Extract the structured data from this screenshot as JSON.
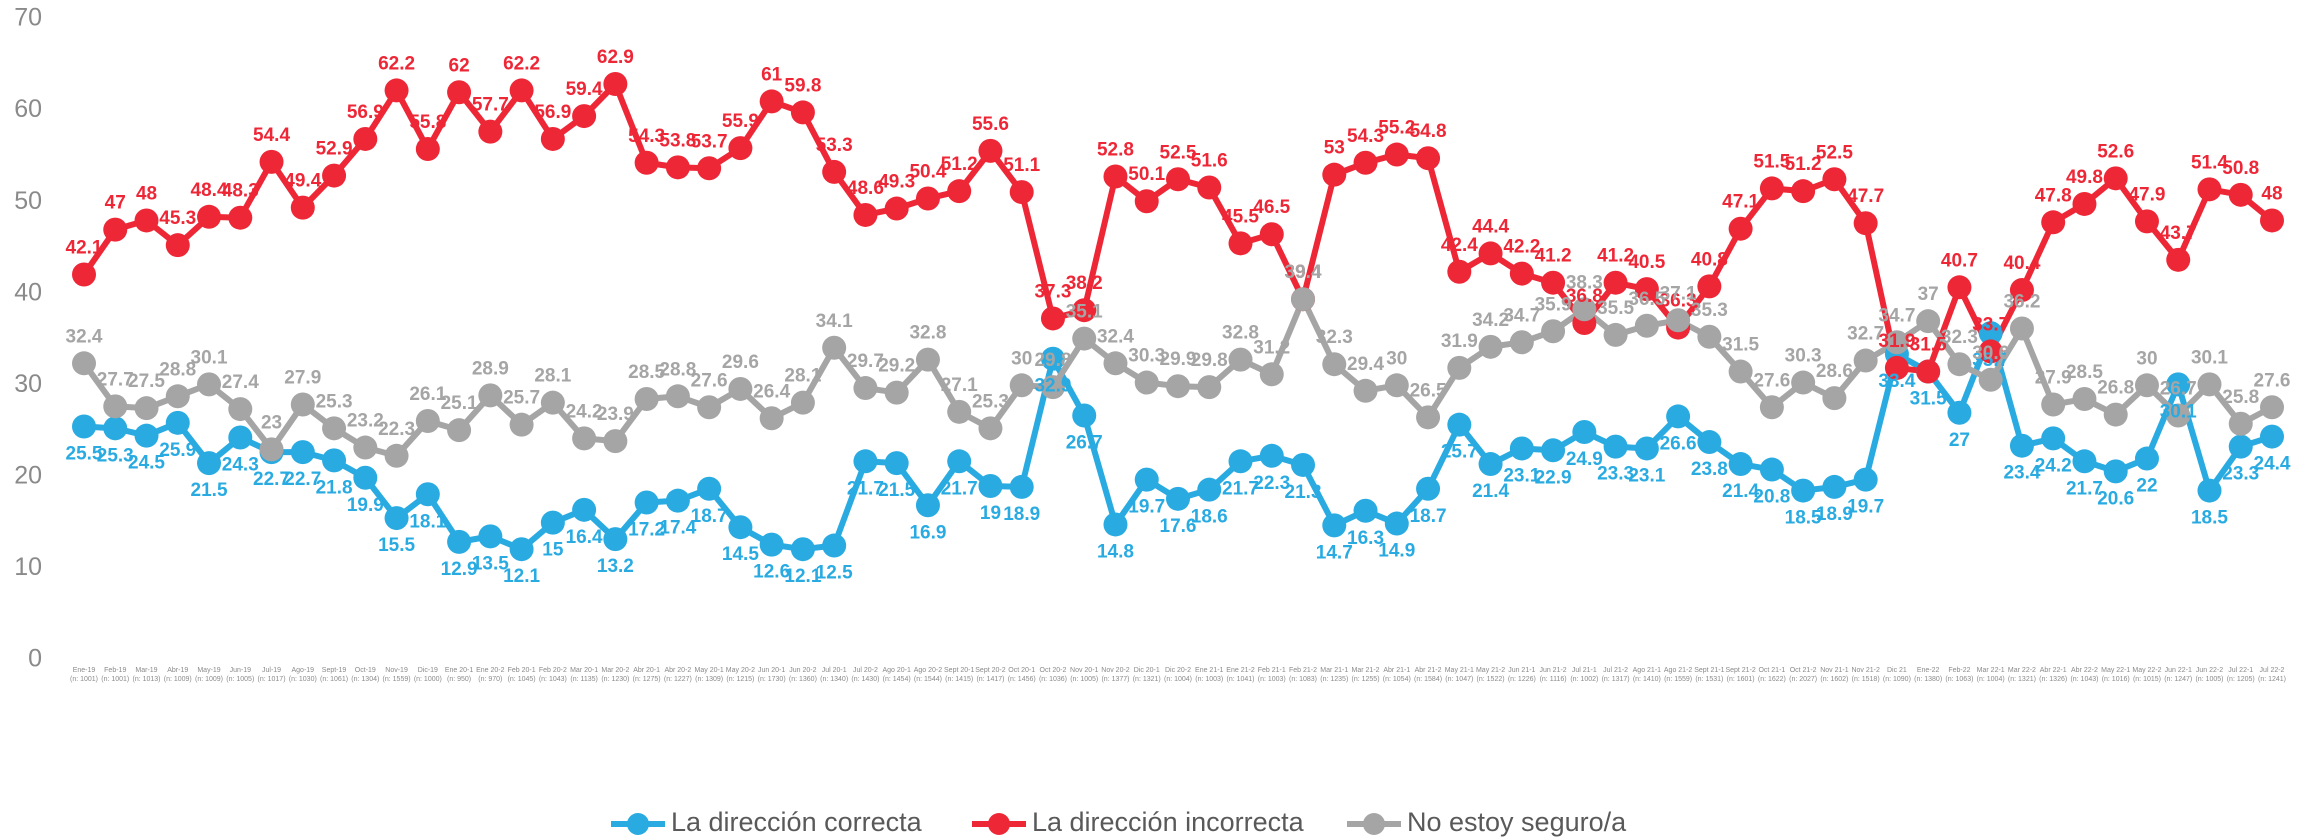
{
  "chart_data": {
    "type": "line",
    "categories": [
      "Ene-19",
      "Feb-19",
      "Mar-19",
      "Abr-19",
      "May-19",
      "Jun-19",
      "Jul-19",
      "Ago-19",
      "Sept-19",
      "Oct-19",
      "Nov-19",
      "Dic-19",
      "Ene 20-1",
      "Ene 20-2",
      "Feb 20-1",
      "Feb 20-2",
      "Mar 20-1",
      "Mar 20-2",
      "Abr 20-1",
      "Abr 20-2",
      "May 20-1",
      "May 20-2",
      "Jun 20-1",
      "Jun 20-2",
      "Jul 20-1",
      "Jul 20-2",
      "Ago 20-1",
      "Ago 20-2",
      "Sept 20-1",
      "Sept 20-2",
      "Oct 20-1",
      "Oct 20-2",
      "Nov 20-1",
      "Nov 20-2",
      "Dic 20-1",
      "Dic 20-2",
      "Ene 21-1",
      "Ene 21-2",
      "Feb 21-1",
      "Feb 21-2",
      "Mar 21-1",
      "Mar 21-2",
      "Abr 21-1",
      "Abr 21-2",
      "May 21-1",
      "May 21-2",
      "Jun 21-1",
      "Jun 21-2",
      "Jul 21-1",
      "Jul 21-2",
      "Ago 21-1",
      "Ago 21-2",
      "Sept 21-1",
      "Sept 21-2",
      "Oct 21-1",
      "Oct 21-2",
      "Nov 21-1",
      "Nov 21-2",
      "Dic 21",
      "Ene-22",
      "Feb-22",
      "Mar 22-1",
      "Mar 22-2",
      "Abr 22-1",
      "Abr 22-2",
      "May 22-1",
      "May 22-2",
      "Jun 22-1",
      "Jun 22-2",
      "Jul 22-1",
      "Jul 22-2"
    ],
    "sample_labels": [
      "(n: 1001)",
      "(n: 1001)",
      "(n: 1013)",
      "(n: 1009)",
      "(n: 1009)",
      "(n: 1005)",
      "(n: 1017)",
      "(n: 1030)",
      "(n: 1061)",
      "(n: 1304)",
      "(n: 1559)",
      "(n: 1000)",
      "(n: 950)",
      "(n: 970)",
      "(n: 1045)",
      "(n: 1043)",
      "(n: 1135)",
      "(n: 1230)",
      "(n: 1275)",
      "(n: 1227)",
      "(n: 1309)",
      "(n: 1215)",
      "(n: 1730)",
      "(n: 1360)",
      "(n: 1340)",
      "(n: 1430)",
      "(n: 1454)",
      "(n: 1544)",
      "(n: 1415)",
      "(n: 1417)",
      "(n: 1456)",
      "(n: 1036)",
      "(n: 1005)",
      "(n: 1377)",
      "(n: 1321)",
      "(n: 1004)",
      "(n: 1003)",
      "(n: 1041)",
      "(n: 1003)",
      "(n: 1083)",
      "(n: 1235)",
      "(n: 1255)",
      "(n: 1054)",
      "(n: 1584)",
      "(n: 1047)",
      "(n: 1522)",
      "(n: 1226)",
      "(n: 1116)",
      "(n: 1002)",
      "(n: 1317)",
      "(n: 1410)",
      "(n: 1559)",
      "(n: 1531)",
      "(n: 1601)",
      "(n: 1622)",
      "(n: 2027)",
      "(n: 1602)",
      "(n: 1518)",
      "(n: 1090)",
      "(n: 1380)",
      "(n: 1063)",
      "(n: 1004)",
      "(n: 1321)",
      "(n: 1326)",
      "(n: 1043)",
      "(n: 1016)",
      "(n: 1015)",
      "(n: 1247)",
      "(n: 1005)",
      "(n: 1205)",
      "(n: 1241)"
    ],
    "series": [
      {
        "name": "La dirección correcta",
        "color": "#29abe2",
        "label_side": "below",
        "values": [
          25.5,
          25.3,
          24.5,
          25.9,
          21.5,
          24.3,
          22.7,
          22.7,
          21.8,
          19.9,
          15.5,
          18.1,
          12.9,
          13.5,
          12.1,
          15,
          16.4,
          13.2,
          17.2,
          17.4,
          18.7,
          14.5,
          12.6,
          12.1,
          12.5,
          21.7,
          21.5,
          16.9,
          21.7,
          19,
          18.9,
          32.9,
          26.7,
          14.8,
          19.7,
          17.6,
          18.6,
          21.7,
          22.3,
          21.3,
          14.7,
          16.3,
          14.9,
          18.7,
          25.7,
          21.4,
          23.1,
          22.9,
          24.9,
          23.3,
          23.1,
          26.6,
          23.8,
          21.4,
          20.8,
          18.5,
          18.9,
          19.7,
          33.4,
          31.5,
          27,
          35.7,
          23.4,
          24.2,
          21.7,
          20.6,
          22,
          30.1,
          18.5,
          23.3,
          24.4
        ]
      },
      {
        "name": "La dirección incorrecta",
        "color": "#ee2737",
        "label_side": "above",
        "values": [
          42.1,
          47,
          48,
          45.3,
          48.4,
          48.3,
          54.4,
          49.4,
          52.9,
          56.9,
          62.2,
          55.8,
          62,
          57.7,
          62.2,
          56.9,
          59.4,
          62.9,
          54.3,
          53.8,
          53.7,
          55.9,
          61,
          59.8,
          53.3,
          48.6,
          49.3,
          50.4,
          51.2,
          55.6,
          51.1,
          37.3,
          38.2,
          52.8,
          50.1,
          52.5,
          51.6,
          45.5,
          46.5,
          39.4,
          53,
          54.3,
          55.2,
          54.8,
          42.4,
          44.4,
          42.2,
          41.2,
          36.8,
          41.2,
          40.5,
          36.3,
          40.8,
          47.1,
          51.5,
          51.2,
          52.5,
          47.7,
          31.9,
          31.5,
          40.7,
          33.7,
          40.4,
          47.8,
          49.8,
          52.6,
          47.9,
          43.7,
          51.4,
          50.8,
          48
        ]
      },
      {
        "name": "No estoy seguro/a",
        "color": "#a5a5a5",
        "label_side": "above",
        "values": [
          32.4,
          27.7,
          27.5,
          28.8,
          30.1,
          27.4,
          23,
          27.9,
          25.3,
          23.2,
          22.3,
          26.1,
          25.1,
          28.9,
          25.7,
          28.1,
          24.2,
          23.9,
          28.5,
          28.8,
          27.6,
          29.6,
          26.4,
          28.1,
          34.1,
          29.7,
          29.2,
          32.8,
          27.1,
          25.3,
          30,
          29.8,
          35.1,
          32.4,
          30.3,
          29.9,
          29.8,
          32.8,
          31.2,
          39.4,
          32.3,
          29.4,
          30,
          26.5,
          31.9,
          34.2,
          34.7,
          35.9,
          38.3,
          35.5,
          36.5,
          37.1,
          35.3,
          31.5,
          27.6,
          30.3,
          28.6,
          32.7,
          34.7,
          37,
          32.3,
          30.6,
          36.2,
          27.9,
          28.5,
          26.8,
          30,
          26.7,
          30.1,
          25.8,
          27.6
        ]
      }
    ],
    "ylim": [
      0,
      70
    ],
    "yticks": [
      0,
      10,
      20,
      30,
      40,
      50,
      60,
      70
    ],
    "grid": false,
    "legend": "bottom"
  }
}
